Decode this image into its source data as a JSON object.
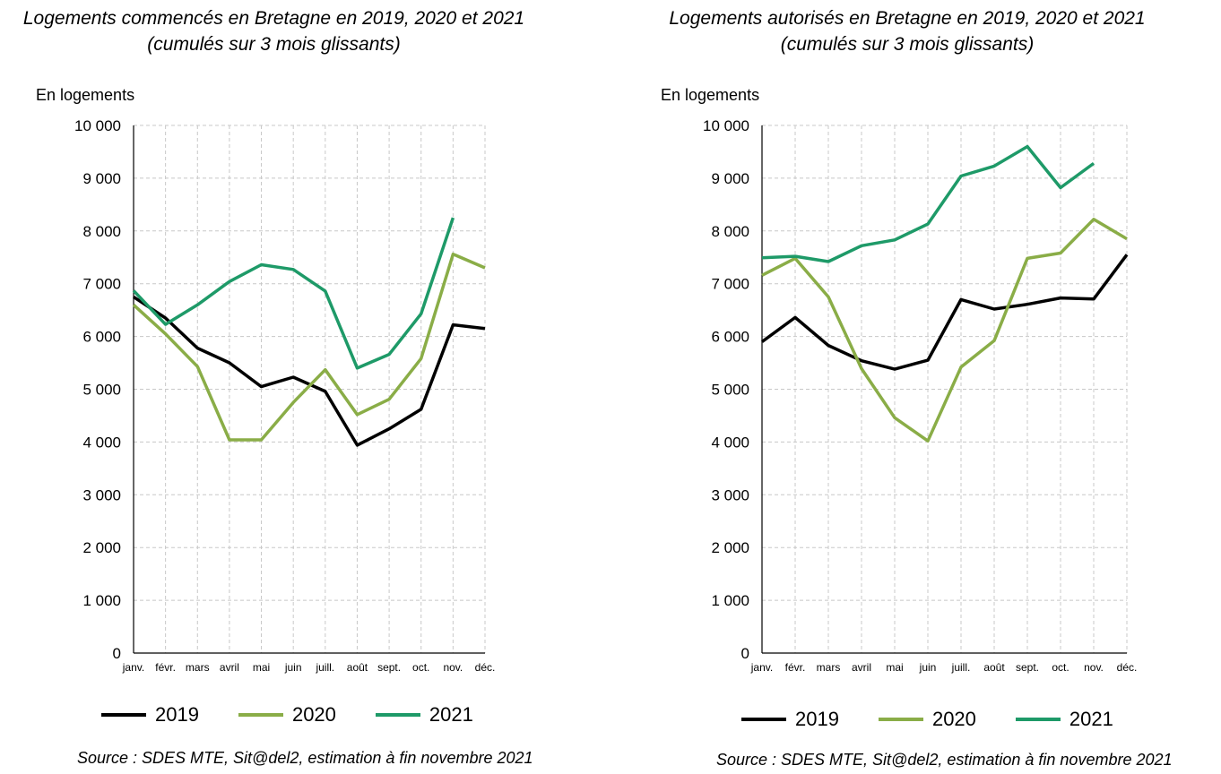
{
  "chart_data": [
    {
      "type": "line",
      "title": "Logements commencés en Bretagne en 2019, 2020 et 2021",
      "subtitle": "(cumulés sur 3 mois glissants)",
      "ylabel": "En logements",
      "xlabel": "",
      "source": "Source : SDES MTE, Sit@del2, estimation à fin novembre 2021",
      "categories": [
        "janv.",
        "févr.",
        "mars",
        "avril",
        "mai",
        "juin",
        "juill.",
        "août",
        "sept.",
        "oct.",
        "nov.",
        "déc."
      ],
      "yticks": [
        "0",
        "1 000",
        "2 000",
        "3 000",
        "4 000",
        "5 000",
        "6 000",
        "7 000",
        "8 000",
        "9 000",
        "10 000"
      ],
      "ylim": [
        0,
        10000
      ],
      "grid": true,
      "legend_position": "bottom",
      "series": [
        {
          "name": "2019",
          "color": "#000000",
          "values": [
            6750,
            6350,
            5780,
            5500,
            5050,
            5230,
            4960,
            3940,
            4250,
            4620,
            6220,
            6150
          ]
        },
        {
          "name": "2020",
          "color": "#8aad47",
          "values": [
            6600,
            6050,
            5430,
            4040,
            4040,
            4750,
            5370,
            4520,
            4810,
            5580,
            7560,
            7300
          ]
        },
        {
          "name": "2021",
          "color": "#1e9a68",
          "values": [
            6870,
            6230,
            6600,
            7040,
            7360,
            7270,
            6860,
            5400,
            5660,
            6430,
            8250,
            null
          ]
        }
      ]
    },
    {
      "type": "line",
      "title": "Logements autorisés en Bretagne en 2019, 2020 et 2021",
      "subtitle": "(cumulés sur 3 mois glissants)",
      "ylabel": "En logements",
      "xlabel": "",
      "source": "Source : SDES MTE, Sit@del2, estimation à fin novembre 2021",
      "categories": [
        "janv.",
        "févr.",
        "mars",
        "avril",
        "mai",
        "juin",
        "juill.",
        "août",
        "sept.",
        "oct.",
        "nov.",
        "déc."
      ],
      "yticks": [
        "0",
        "1 000",
        "2 000",
        "3 000",
        "4 000",
        "5 000",
        "6 000",
        "7 000",
        "8 000",
        "9 000",
        "10 000"
      ],
      "ylim": [
        0,
        10000
      ],
      "grid": true,
      "legend_position": "bottom",
      "series": [
        {
          "name": "2019",
          "color": "#000000",
          "values": [
            5900,
            6360,
            5830,
            5540,
            5380,
            5550,
            6700,
            6520,
            6610,
            6730,
            6710,
            7550
          ]
        },
        {
          "name": "2020",
          "color": "#8aad47",
          "values": [
            7160,
            7480,
            6750,
            5390,
            4460,
            4020,
            5420,
            5920,
            7480,
            7580,
            8220,
            7850
          ]
        },
        {
          "name": "2021",
          "color": "#1e9a68",
          "values": [
            7490,
            7520,
            7420,
            7720,
            7830,
            8130,
            9040,
            9230,
            9600,
            8820,
            9280,
            null
          ]
        }
      ]
    }
  ]
}
